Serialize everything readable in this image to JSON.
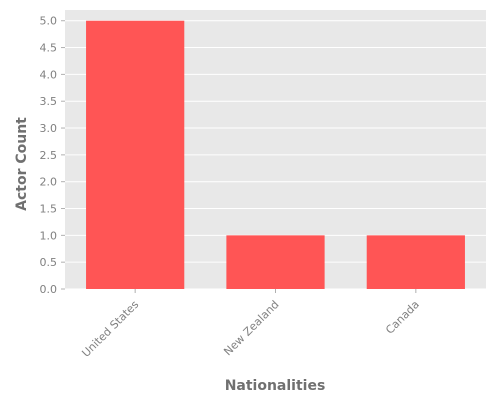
{
  "chart_data": {
    "type": "bar",
    "title": "",
    "xlabel": "Nationalities",
    "ylabel": "Actor Count",
    "categories": [
      "United States",
      "New Zealand",
      "Canada"
    ],
    "values": [
      5,
      1,
      1
    ],
    "ylim": [
      0,
      5.2
    ],
    "yticks": [
      "0.0",
      "0.5",
      "1.0",
      "1.5",
      "2.0",
      "2.5",
      "3.0",
      "3.5",
      "4.0",
      "4.5",
      "5.0"
    ],
    "grid": true,
    "legend": "none",
    "colors": {
      "bar": "#ff5555",
      "background": "#e8e8e8",
      "grid": "#ffffff"
    }
  }
}
